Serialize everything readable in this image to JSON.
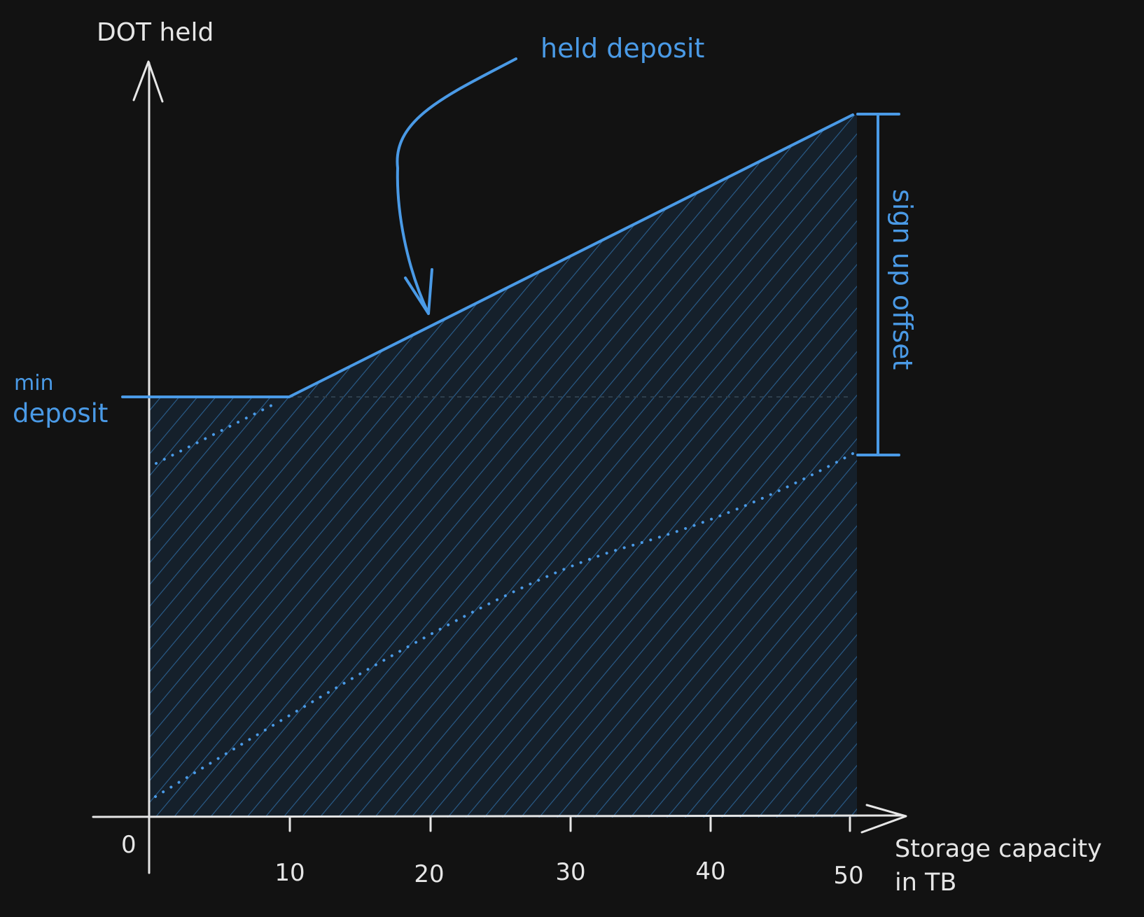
{
  "y_axis_title": "DOT held",
  "x_axis_title_line1": "Storage capacity",
  "x_axis_title_line2": "in TB",
  "origin_label": "0",
  "x_ticks": [
    "10",
    "20",
    "30",
    "40",
    "50"
  ],
  "annotations": {
    "held_deposit": "held deposit",
    "min_deposit_line1": "min",
    "min_deposit_line2": "deposit",
    "sign_up_offset": "sign up offset"
  },
  "colors": {
    "background": "#121212",
    "axis": "#e6e6e6",
    "accent": "#4a9ae6",
    "hatch": "#2a5f8f",
    "hatch_fill": "#15202b"
  }
}
